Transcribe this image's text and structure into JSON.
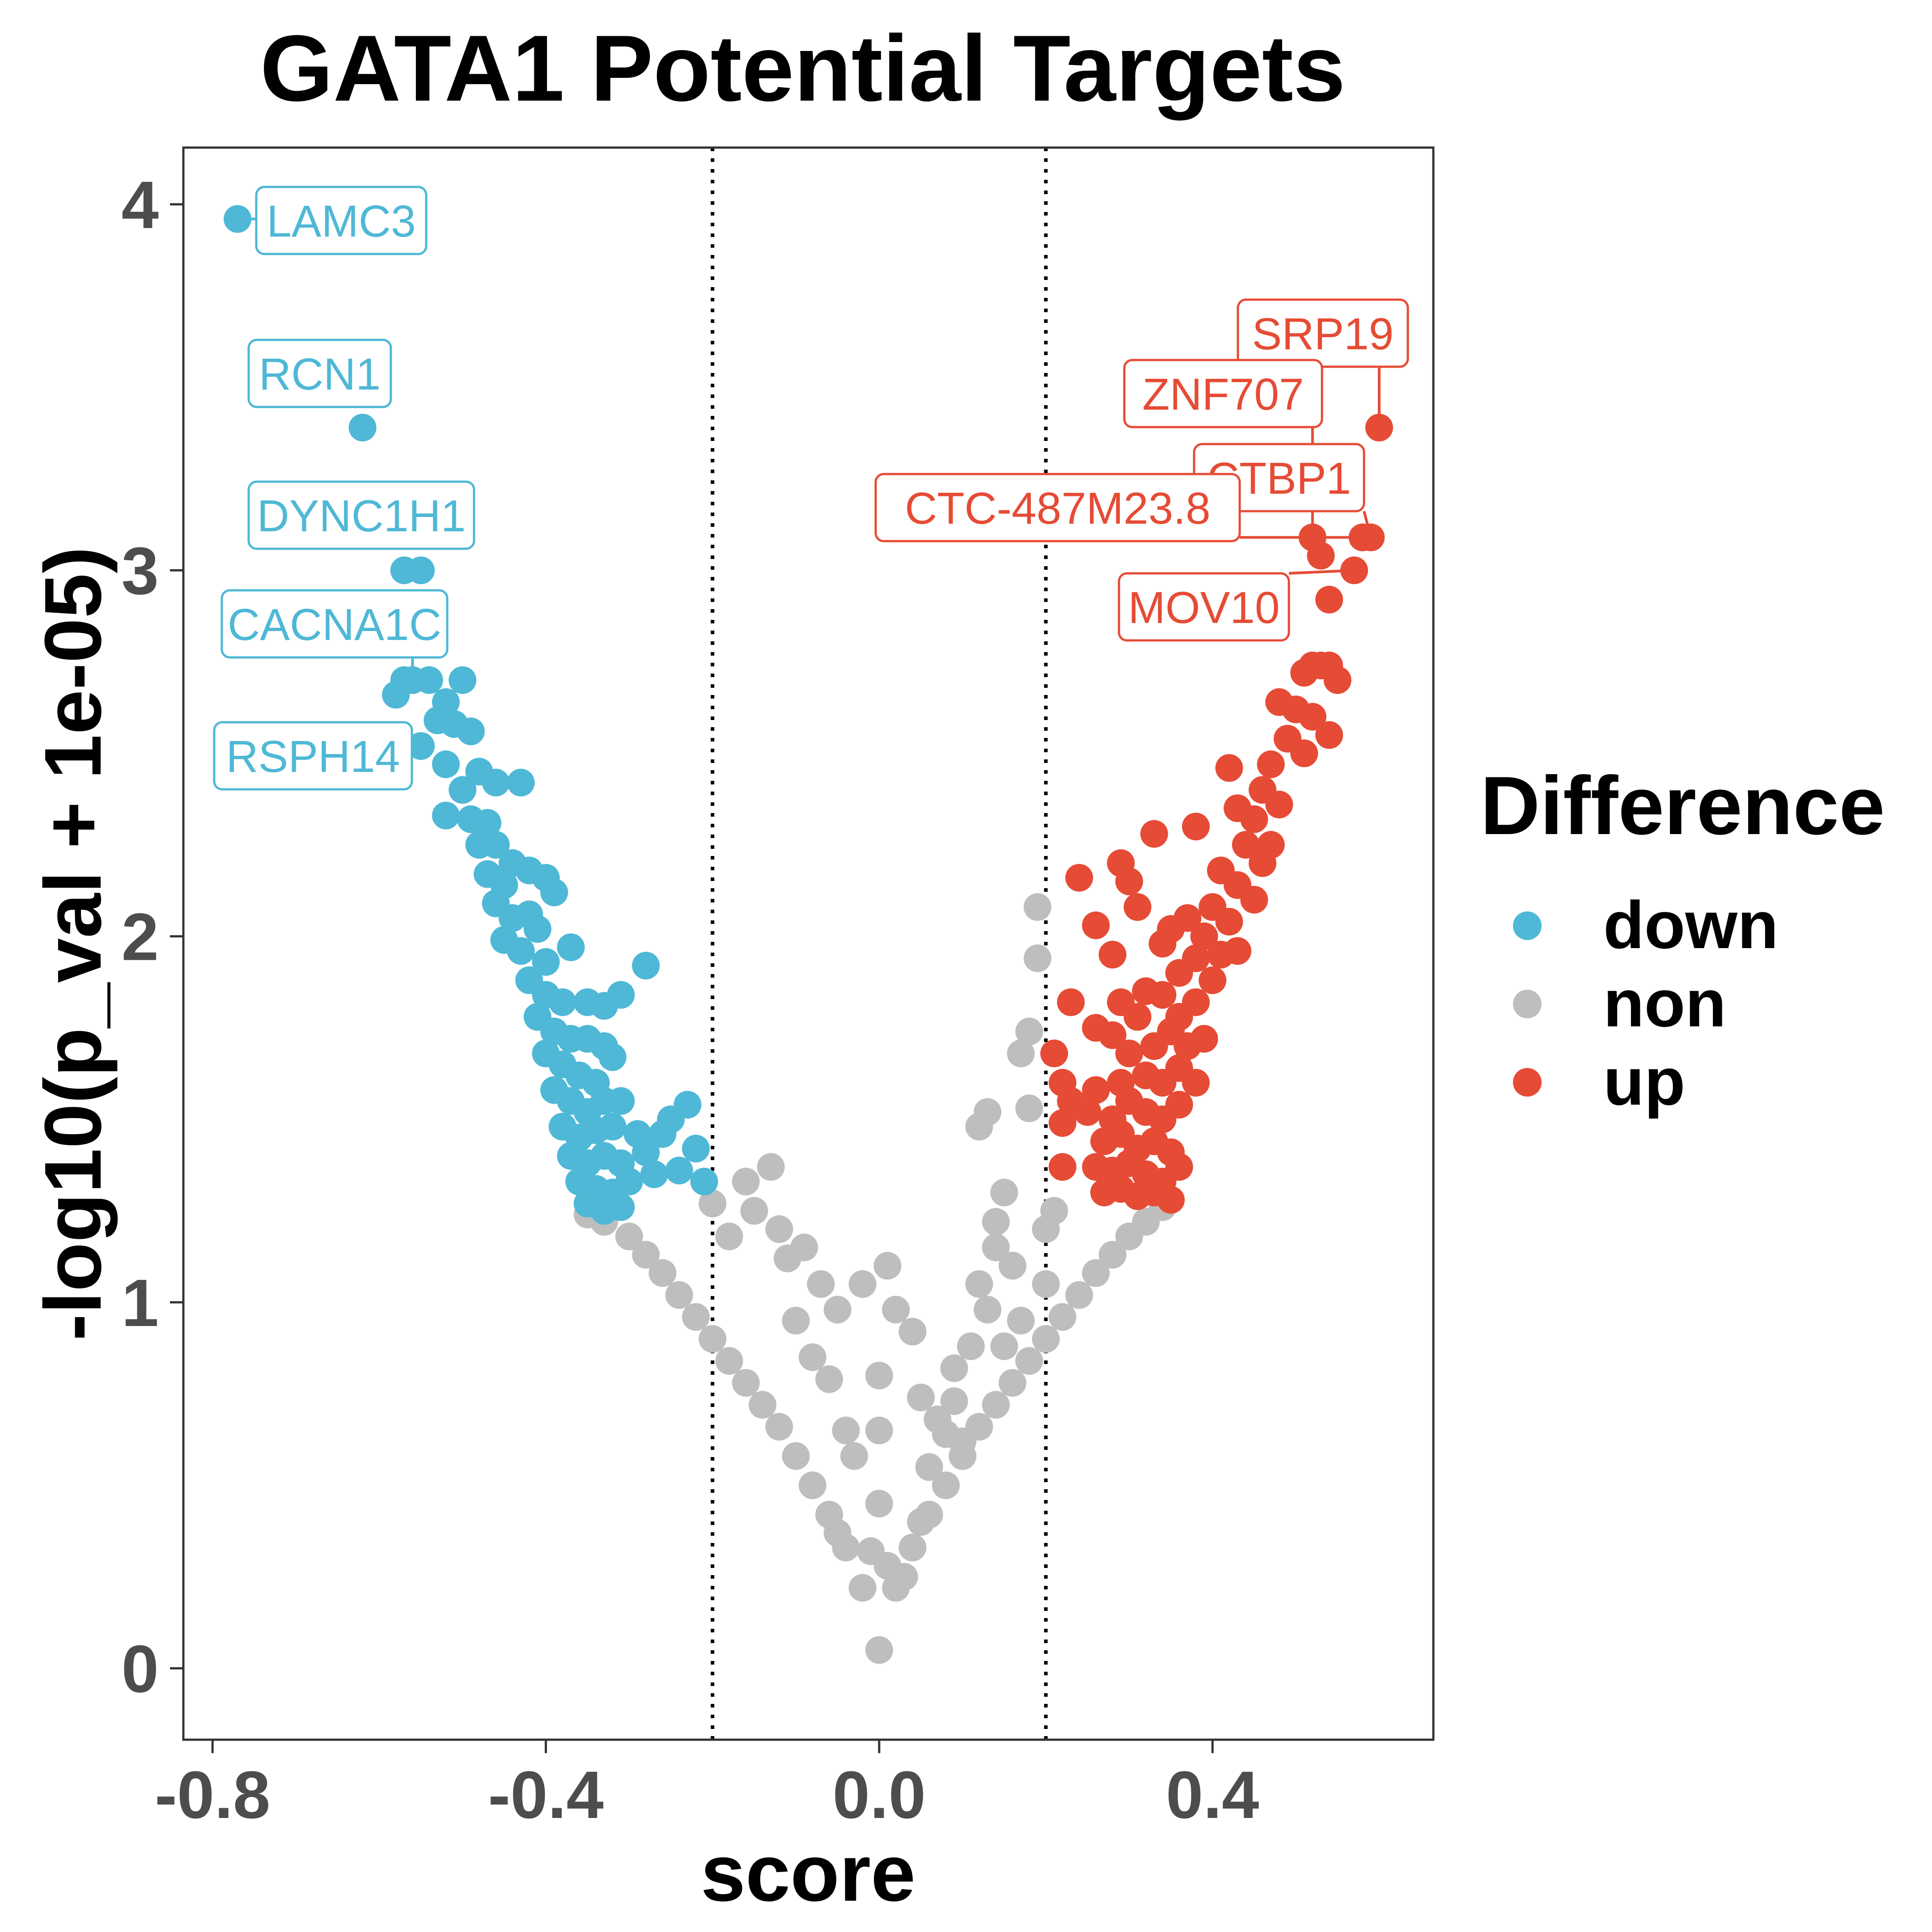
{
  "chart_data": {
    "type": "scatter",
    "title": "GATA1 Potential Targets",
    "xlabel": "score",
    "ylabel": "-log10(p_val + 1e-05)",
    "xlim": [
      -0.835,
      0.665
    ],
    "ylim": [
      -0.195,
      4.155
    ],
    "xticks": [
      -0.8,
      -0.4,
      0.0,
      0.4
    ],
    "xtick_labels": [
      "-0.8",
      "-0.4",
      "0.0",
      "0.4"
    ],
    "yticks": [
      0,
      1,
      2,
      3,
      4
    ],
    "ytick_labels": [
      "0",
      "1",
      "2",
      "3",
      "4"
    ],
    "thresholds": [
      -0.2,
      0.2
    ],
    "grid": false,
    "legend": {
      "title": "Difference",
      "placement": "right",
      "entries": [
        "down",
        "non",
        "up"
      ]
    },
    "series": [
      {
        "name": "down",
        "color": "#4EB8D6",
        "points": [
          [
            -0.77,
            3.96
          ],
          [
            -0.62,
            3.39
          ],
          [
            -0.57,
            3.0
          ],
          [
            -0.55,
            3.0
          ],
          [
            -0.57,
            2.7
          ],
          [
            -0.56,
            2.7
          ],
          [
            -0.54,
            2.7
          ],
          [
            -0.58,
            2.66
          ],
          [
            -0.52,
            2.64
          ],
          [
            -0.5,
            2.7
          ],
          [
            -0.53,
            2.59
          ],
          [
            -0.51,
            2.58
          ],
          [
            -0.49,
            2.56
          ],
          [
            -0.55,
            2.52
          ],
          [
            -0.52,
            2.47
          ],
          [
            -0.48,
            2.45
          ],
          [
            -0.5,
            2.4
          ],
          [
            -0.46,
            2.42
          ],
          [
            -0.43,
            2.42
          ],
          [
            -0.52,
            2.33
          ],
          [
            -0.49,
            2.32
          ],
          [
            -0.47,
            2.31
          ],
          [
            -0.48,
            2.25
          ],
          [
            -0.46,
            2.25
          ],
          [
            -0.44,
            2.2
          ],
          [
            -0.47,
            2.17
          ],
          [
            -0.45,
            2.14
          ],
          [
            -0.42,
            2.18
          ],
          [
            -0.4,
            2.16
          ],
          [
            -0.39,
            2.12
          ],
          [
            -0.46,
            2.09
          ],
          [
            -0.44,
            2.05
          ],
          [
            -0.42,
            2.06
          ],
          [
            -0.41,
            2.02
          ],
          [
            -0.45,
            1.99
          ],
          [
            -0.43,
            1.96
          ],
          [
            -0.4,
            1.93
          ],
          [
            -0.37,
            1.97
          ],
          [
            -0.28,
            1.92
          ],
          [
            -0.42,
            1.88
          ],
          [
            -0.4,
            1.84
          ],
          [
            -0.38,
            1.82
          ],
          [
            -0.35,
            1.82
          ],
          [
            -0.31,
            1.84
          ],
          [
            -0.33,
            1.81
          ],
          [
            -0.41,
            1.78
          ],
          [
            -0.39,
            1.74
          ],
          [
            -0.37,
            1.72
          ],
          [
            -0.35,
            1.72
          ],
          [
            -0.33,
            1.7
          ],
          [
            -0.4,
            1.68
          ],
          [
            -0.38,
            1.65
          ],
          [
            -0.36,
            1.62
          ],
          [
            -0.34,
            1.6
          ],
          [
            -0.32,
            1.67
          ],
          [
            -0.39,
            1.58
          ],
          [
            -0.37,
            1.55
          ],
          [
            -0.35,
            1.52
          ],
          [
            -0.33,
            1.55
          ],
          [
            -0.31,
            1.55
          ],
          [
            -0.38,
            1.48
          ],
          [
            -0.36,
            1.45
          ],
          [
            -0.34,
            1.47
          ],
          [
            -0.32,
            1.48
          ],
          [
            -0.29,
            1.46
          ],
          [
            -0.37,
            1.4
          ],
          [
            -0.35,
            1.38
          ],
          [
            -0.33,
            1.4
          ],
          [
            -0.31,
            1.38
          ],
          [
            -0.28,
            1.41
          ],
          [
            -0.26,
            1.46
          ],
          [
            -0.25,
            1.5
          ],
          [
            -0.23,
            1.54
          ],
          [
            -0.36,
            1.33
          ],
          [
            -0.34,
            1.31
          ],
          [
            -0.32,
            1.3
          ],
          [
            -0.3,
            1.33
          ],
          [
            -0.27,
            1.35
          ],
          [
            -0.24,
            1.36
          ],
          [
            -0.22,
            1.42
          ],
          [
            -0.21,
            1.33
          ],
          [
            -0.35,
            1.27
          ],
          [
            -0.33,
            1.25
          ],
          [
            -0.31,
            1.26
          ]
        ]
      },
      {
        "name": "non",
        "color": "#BEBEBE",
        "points": [
          [
            -0.35,
            1.24
          ],
          [
            -0.33,
            1.22
          ],
          [
            -0.3,
            1.18
          ],
          [
            -0.28,
            1.13
          ],
          [
            -0.26,
            1.08
          ],
          [
            -0.24,
            1.02
          ],
          [
            -0.22,
            0.96
          ],
          [
            -0.2,
            0.9
          ],
          [
            -0.18,
            0.84
          ],
          [
            -0.16,
            0.78
          ],
          [
            -0.14,
            0.72
          ],
          [
            -0.12,
            0.66
          ],
          [
            -0.1,
            0.58
          ],
          [
            -0.08,
            0.5
          ],
          [
            -0.06,
            0.42
          ],
          [
            -0.04,
            0.33
          ],
          [
            -0.02,
            0.22
          ],
          [
            0.0,
            0.05
          ],
          [
            0.02,
            0.22
          ],
          [
            0.04,
            0.33
          ],
          [
            0.06,
            0.42
          ],
          [
            0.08,
            0.5
          ],
          [
            0.1,
            0.58
          ],
          [
            0.12,
            0.66
          ],
          [
            0.14,
            0.72
          ],
          [
            0.16,
            0.78
          ],
          [
            0.18,
            0.84
          ],
          [
            0.2,
            0.9
          ],
          [
            0.22,
            0.96
          ],
          [
            0.24,
            1.02
          ],
          [
            0.26,
            1.08
          ],
          [
            0.28,
            1.13
          ],
          [
            0.3,
            1.18
          ],
          [
            0.32,
            1.22
          ],
          [
            0.34,
            1.26
          ],
          [
            -0.2,
            1.27
          ],
          [
            -0.16,
            1.33
          ],
          [
            -0.13,
            1.37
          ],
          [
            -0.12,
            1.2
          ],
          [
            -0.09,
            1.15
          ],
          [
            -0.07,
            1.05
          ],
          [
            -0.05,
            0.98
          ],
          [
            -0.02,
            1.05
          ],
          [
            0.01,
            1.1
          ],
          [
            0.02,
            0.98
          ],
          [
            0.04,
            0.92
          ],
          [
            -0.08,
            0.85
          ],
          [
            -0.06,
            0.79
          ],
          [
            -0.03,
            0.58
          ],
          [
            0.0,
            0.8
          ],
          [
            0.0,
            0.65
          ],
          [
            0.0,
            0.45
          ],
          [
            0.05,
            0.74
          ],
          [
            0.07,
            0.68
          ],
          [
            0.09,
            0.82
          ],
          [
            0.1,
            0.62
          ],
          [
            0.12,
            1.05
          ],
          [
            0.14,
            1.22
          ],
          [
            0.13,
            1.52
          ],
          [
            0.12,
            1.48
          ],
          [
            0.17,
            1.68
          ],
          [
            0.15,
            1.3
          ],
          [
            0.14,
            1.15
          ],
          [
            0.18,
            1.74
          ],
          [
            0.19,
            1.94
          ],
          [
            0.19,
            2.08
          ],
          [
            0.18,
            1.53
          ],
          [
            0.16,
            1.1
          ],
          [
            0.2,
            1.2
          ],
          [
            0.21,
            1.25
          ],
          [
            0.11,
            0.88
          ],
          [
            0.09,
            0.73
          ],
          [
            0.08,
            0.64
          ],
          [
            0.06,
            0.55
          ],
          [
            0.05,
            0.4
          ],
          [
            -0.04,
            0.65
          ],
          [
            -0.05,
            0.37
          ],
          [
            -0.01,
            0.32
          ],
          [
            0.01,
            0.28
          ],
          [
            0.03,
            0.25
          ],
          [
            -0.15,
            1.25
          ],
          [
            -0.18,
            1.18
          ],
          [
            -0.11,
            1.12
          ],
          [
            -0.1,
            0.95
          ],
          [
            0.13,
            0.98
          ],
          [
            0.15,
            0.88
          ],
          [
            0.17,
            0.95
          ],
          [
            0.2,
            1.05
          ]
        ]
      },
      {
        "name": "up",
        "color": "#E64B35",
        "points": [
          [
            0.6,
            3.39
          ],
          [
            0.59,
            3.09
          ],
          [
            0.58,
            3.09
          ],
          [
            0.52,
            3.09
          ],
          [
            0.53,
            3.04
          ],
          [
            0.57,
            3.0
          ],
          [
            0.54,
            2.92
          ],
          [
            0.52,
            2.74
          ],
          [
            0.53,
            2.74
          ],
          [
            0.54,
            2.74
          ],
          [
            0.51,
            2.72
          ],
          [
            0.55,
            2.7
          ],
          [
            0.48,
            2.64
          ],
          [
            0.5,
            2.62
          ],
          [
            0.52,
            2.6
          ],
          [
            0.49,
            2.54
          ],
          [
            0.51,
            2.5
          ],
          [
            0.54,
            2.55
          ],
          [
            0.42,
            2.46
          ],
          [
            0.47,
            2.47
          ],
          [
            0.46,
            2.4
          ],
          [
            0.48,
            2.36
          ],
          [
            0.43,
            2.35
          ],
          [
            0.45,
            2.32
          ],
          [
            0.44,
            2.25
          ],
          [
            0.46,
            2.2
          ],
          [
            0.47,
            2.25
          ],
          [
            0.38,
            2.3
          ],
          [
            0.33,
            2.28
          ],
          [
            0.29,
            2.2
          ],
          [
            0.24,
            2.16
          ],
          [
            0.3,
            2.15
          ],
          [
            0.41,
            2.18
          ],
          [
            0.43,
            2.14
          ],
          [
            0.45,
            2.1
          ],
          [
            0.4,
            2.08
          ],
          [
            0.42,
            2.04
          ],
          [
            0.39,
            2.0
          ],
          [
            0.37,
            2.05
          ],
          [
            0.35,
            2.02
          ],
          [
            0.31,
            2.08
          ],
          [
            0.26,
            2.03
          ],
          [
            0.28,
            1.95
          ],
          [
            0.34,
            1.98
          ],
          [
            0.36,
            1.9
          ],
          [
            0.38,
            1.94
          ],
          [
            0.41,
            1.95
          ],
          [
            0.43,
            1.96
          ],
          [
            0.4,
            1.88
          ],
          [
            0.38,
            1.82
          ],
          [
            0.36,
            1.78
          ],
          [
            0.34,
            1.84
          ],
          [
            0.32,
            1.85
          ],
          [
            0.29,
            1.82
          ],
          [
            0.23,
            1.82
          ],
          [
            0.31,
            1.78
          ],
          [
            0.35,
            1.74
          ],
          [
            0.37,
            1.7
          ],
          [
            0.39,
            1.72
          ],
          [
            0.33,
            1.7
          ],
          [
            0.3,
            1.68
          ],
          [
            0.26,
            1.75
          ],
          [
            0.28,
            1.73
          ],
          [
            0.21,
            1.68
          ],
          [
            0.32,
            1.62
          ],
          [
            0.34,
            1.6
          ],
          [
            0.36,
            1.64
          ],
          [
            0.38,
            1.6
          ],
          [
            0.29,
            1.6
          ],
          [
            0.26,
            1.58
          ],
          [
            0.22,
            1.6
          ],
          [
            0.23,
            1.55
          ],
          [
            0.3,
            1.55
          ],
          [
            0.32,
            1.52
          ],
          [
            0.34,
            1.5
          ],
          [
            0.36,
            1.54
          ],
          [
            0.28,
            1.5
          ],
          [
            0.25,
            1.52
          ],
          [
            0.22,
            1.49
          ],
          [
            0.27,
            1.44
          ],
          [
            0.29,
            1.46
          ],
          [
            0.31,
            1.42
          ],
          [
            0.33,
            1.44
          ],
          [
            0.35,
            1.41
          ],
          [
            0.26,
            1.37
          ],
          [
            0.28,
            1.36
          ],
          [
            0.3,
            1.38
          ],
          [
            0.32,
            1.35
          ],
          [
            0.34,
            1.33
          ],
          [
            0.36,
            1.37
          ],
          [
            0.22,
            1.37
          ],
          [
            0.27,
            1.3
          ],
          [
            0.29,
            1.31
          ],
          [
            0.31,
            1.29
          ],
          [
            0.33,
            1.3
          ],
          [
            0.35,
            1.28
          ]
        ]
      }
    ],
    "labels": [
      {
        "text": "LAMC3",
        "series": "down",
        "x": -0.77,
        "y": 3.96
      },
      {
        "text": "RCN1",
        "series": "down",
        "x": -0.62,
        "y": 3.39
      },
      {
        "text": "DYNC1H1",
        "series": "down",
        "x": -0.57,
        "y": 3.0
      },
      {
        "text": "CACNA1C",
        "series": "down",
        "x": -0.56,
        "y": 2.7
      },
      {
        "text": "RSPH14",
        "series": "down",
        "x": -0.55,
        "y": 2.52
      },
      {
        "text": "SRP19",
        "series": "up",
        "x": 0.6,
        "y": 3.39
      },
      {
        "text": "ZNF707",
        "series": "up",
        "x": 0.52,
        "y": 3.09
      },
      {
        "text": "CTBP1",
        "series": "up",
        "x": 0.59,
        "y": 3.09
      },
      {
        "text": "CTC-487M23.8",
        "series": "up",
        "x": 0.58,
        "y": 3.09
      },
      {
        "text": "MOV10",
        "series": "up",
        "x": 0.57,
        "y": 3.0
      }
    ]
  }
}
